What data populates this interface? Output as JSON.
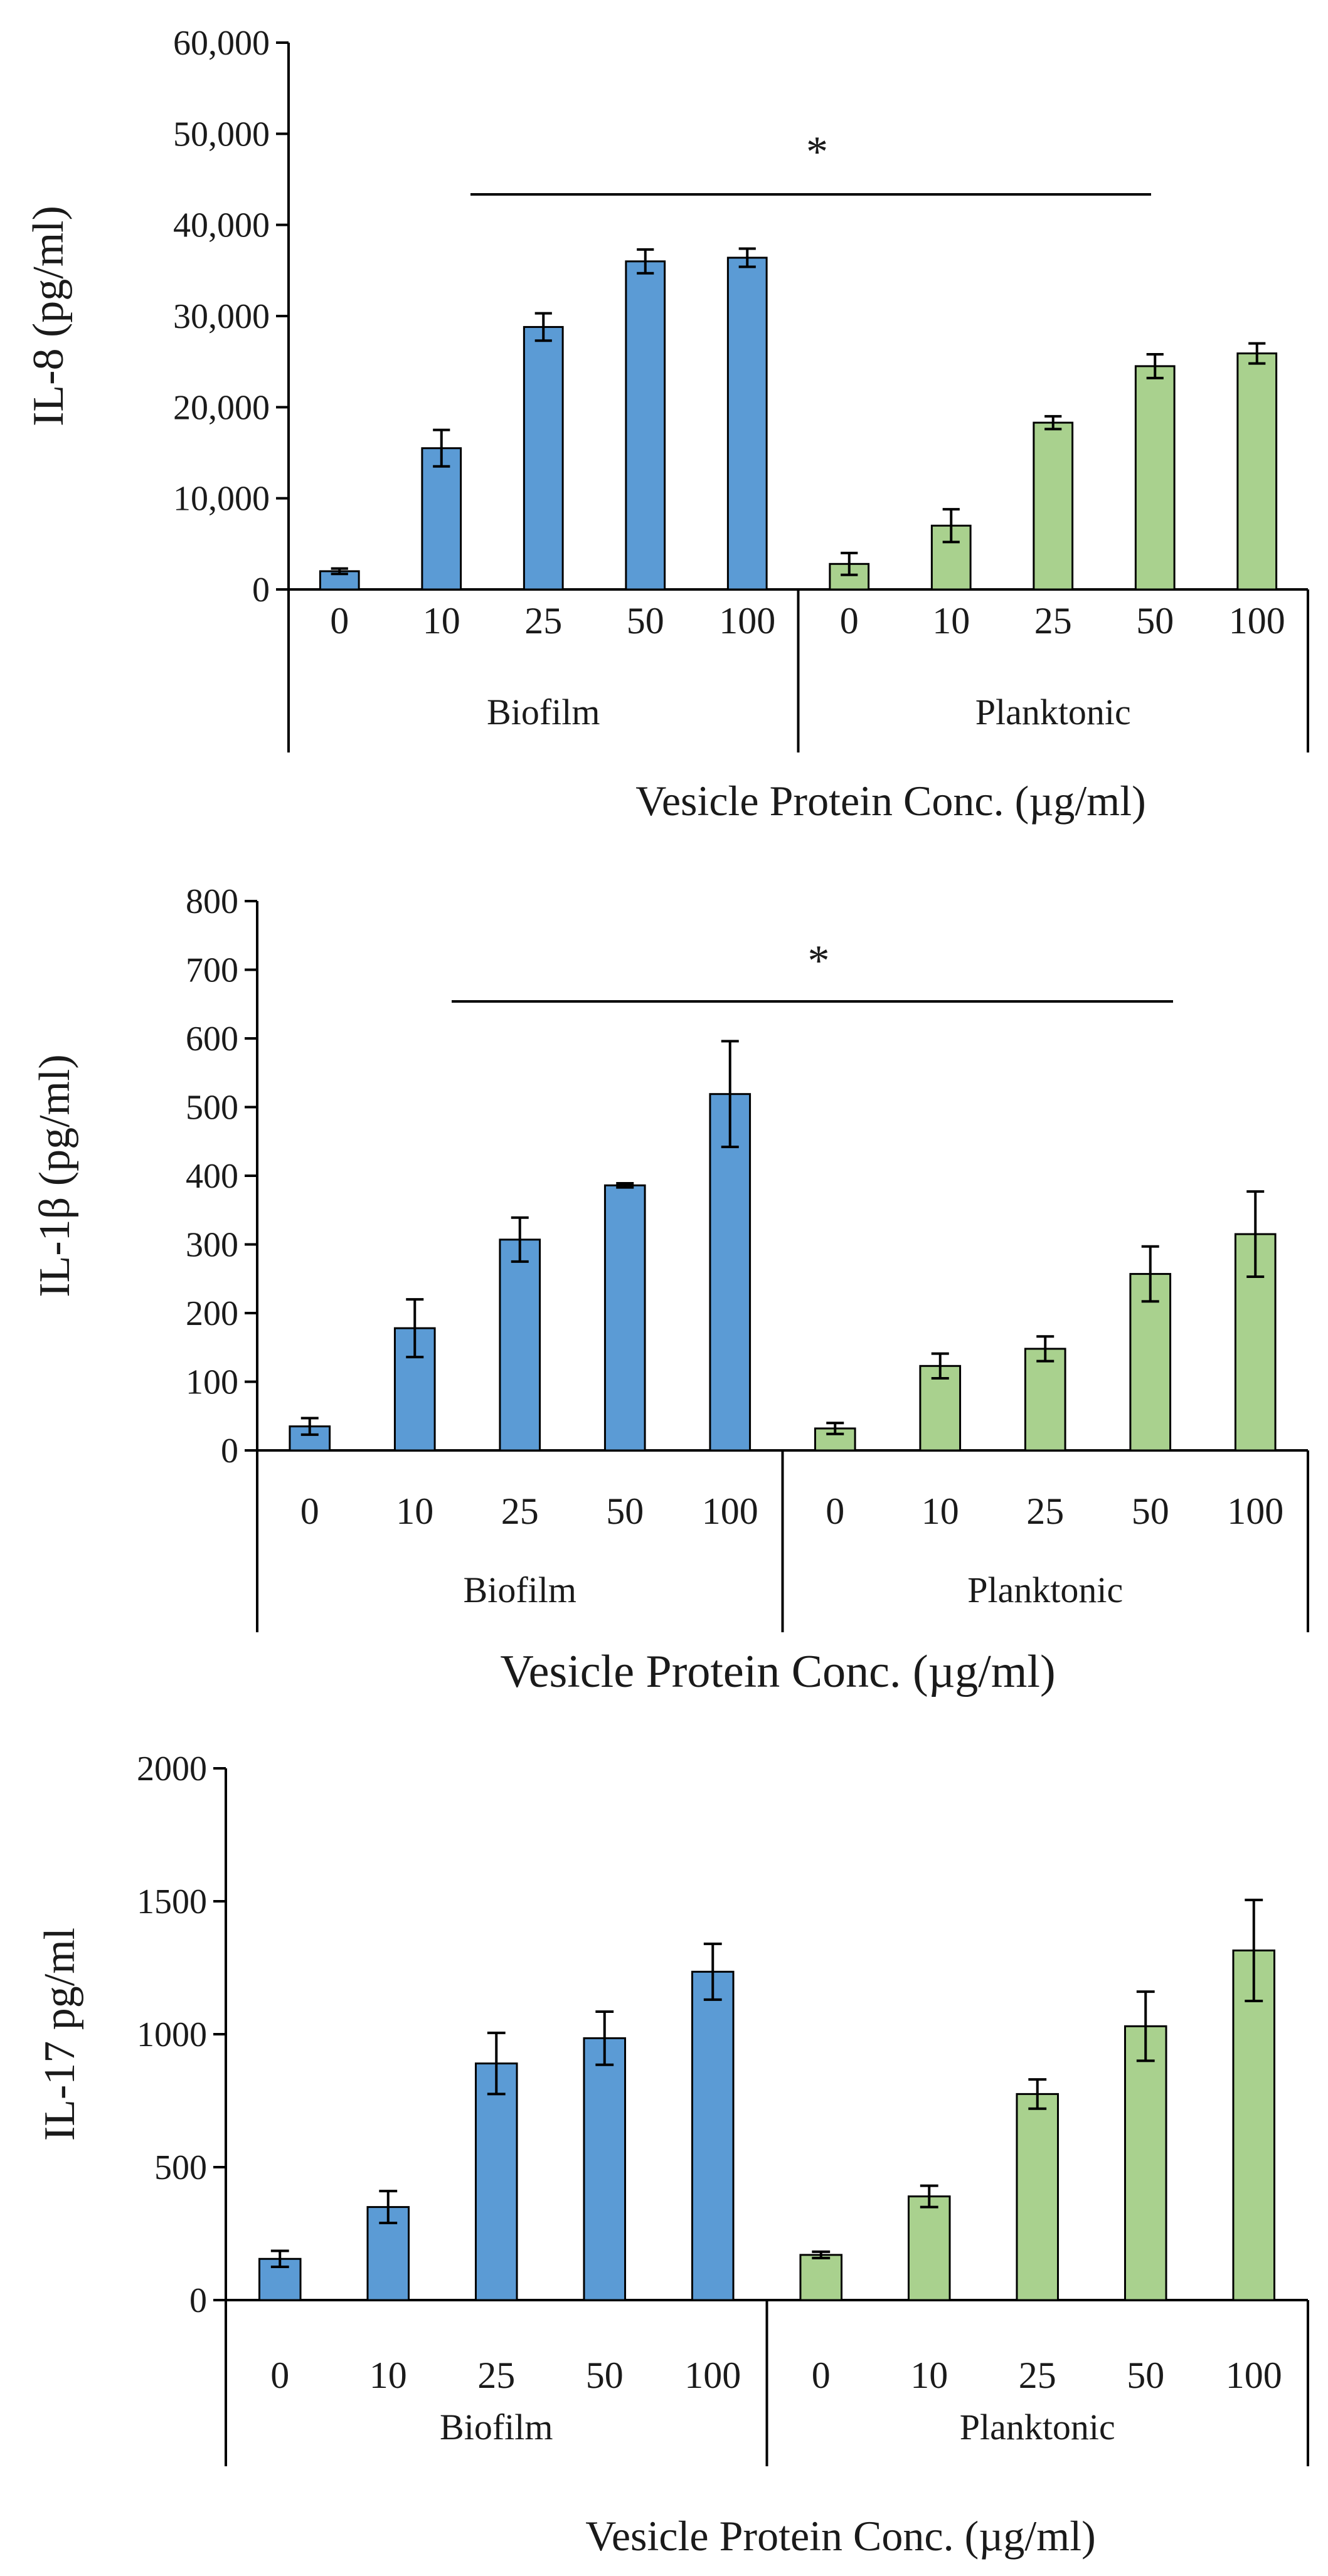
{
  "colors": {
    "biofilm": "#5B9BD5",
    "planktonic": "#A9D18E",
    "axis": "#000000",
    "text": "#1a1a1a"
  },
  "chart_data": [
    {
      "type": "bar",
      "ylabel": "IL-8 (pg/ml)",
      "xlabel": "Vesicle Protein Conc. (µg/ml)",
      "ylim": [
        0,
        60000
      ],
      "yticks": [
        0,
        10000,
        20000,
        30000,
        40000,
        50000,
        60000
      ],
      "ytick_labels": [
        "0",
        "10,000",
        "20,000",
        "30,000",
        "40,000",
        "50,000",
        "60,000"
      ],
      "categories": [
        "0",
        "10",
        "25",
        "50",
        "100"
      ],
      "significance": "*",
      "series": [
        {
          "name": "Biofilm",
          "values": [
            2000,
            15500,
            28800,
            36000,
            36400
          ],
          "errors": [
            300,
            2000,
            1500,
            1300,
            1000
          ]
        },
        {
          "name": "Planktonic",
          "values": [
            2800,
            7000,
            18300,
            24500,
            25900
          ],
          "errors": [
            1200,
            1800,
            700,
            1300,
            1100
          ]
        }
      ]
    },
    {
      "type": "bar",
      "ylabel": "IL-1β (pg/ml)",
      "xlabel": "Vesicle Protein Conc. (µg/ml)",
      "ylim": [
        0,
        800
      ],
      "yticks": [
        0,
        100,
        200,
        300,
        400,
        500,
        600,
        700,
        800
      ],
      "ytick_labels": [
        "0",
        "100",
        "200",
        "300",
        "400",
        "500",
        "600",
        "700",
        "800"
      ],
      "categories": [
        "0",
        "10",
        "25",
        "50",
        "100"
      ],
      "significance": "*",
      "series": [
        {
          "name": "Biofilm",
          "values": [
            35,
            178,
            307,
            386,
            519
          ],
          "errors": [
            12,
            42,
            32,
            3,
            77
          ]
        },
        {
          "name": "Planktonic",
          "values": [
            32,
            123,
            148,
            257,
            315
          ],
          "errors": [
            8,
            18,
            18,
            40,
            62
          ]
        }
      ]
    },
    {
      "type": "bar",
      "ylabel": "IL-17 pg/ml",
      "xlabel": "Vesicle Protein Conc. (µg/ml)",
      "ylim": [
        0,
        2000
      ],
      "yticks": [
        0,
        500,
        1000,
        1500,
        2000
      ],
      "ytick_labels": [
        "0",
        "500",
        "1000",
        "1500",
        "2000"
      ],
      "categories": [
        "0",
        "10",
        "25",
        "50",
        "100"
      ],
      "significance": "",
      "series": [
        {
          "name": "Biofilm",
          "values": [
            155,
            350,
            890,
            985,
            1235
          ],
          "errors": [
            30,
            60,
            115,
            100,
            105
          ]
        },
        {
          "name": "Planktonic",
          "values": [
            170,
            390,
            775,
            1030,
            1315
          ],
          "errors": [
            12,
            40,
            55,
            130,
            190
          ]
        }
      ]
    }
  ]
}
